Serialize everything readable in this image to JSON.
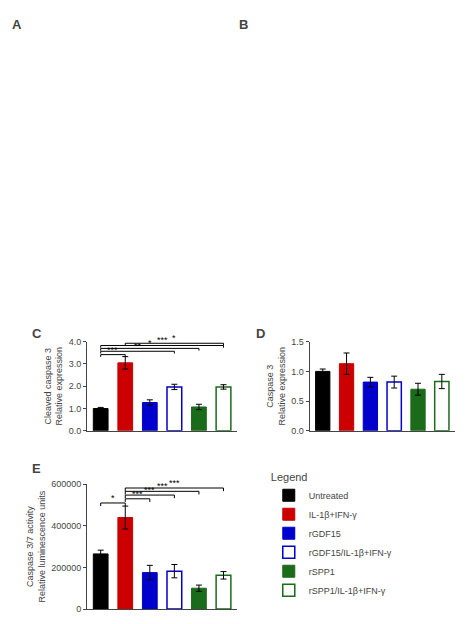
{
  "chart_data": [
    {
      "type": "blank",
      "title": "A"
    },
    {
      "type": "blank",
      "title": "B"
    },
    {
      "type": "bar",
      "title": "C",
      "ylabel": "Cleaved caspase 3\nRelative expression",
      "ylim": [
        0,
        4.0
      ],
      "yticks": [
        {
          "value": 0.0,
          "label": "0.0"
        },
        {
          "value": 1.0,
          "label": "1.0"
        },
        {
          "value": 2.0,
          "label": "2.0"
        },
        {
          "value": 3.0,
          "label": "3.0"
        },
        {
          "value": 4.0,
          "label": "4.0"
        }
      ],
      "grid": false,
      "tick_labels": "y",
      "series": [
        {
          "name": "Untreated",
          "color": "#000000",
          "marker": "filled",
          "values": [
            1.0
          ],
          "errors": [
            0.05
          ]
        },
        {
          "name": "IL-1β+IFN-γ",
          "color": "#cc0000",
          "marker": "filled",
          "values": [
            3.05
          ],
          "errors": [
            0.28
          ]
        },
        {
          "name": "rGDF15",
          "color": "#0000cc",
          "marker": "filled",
          "values": [
            1.27
          ],
          "errors": [
            0.12
          ]
        },
        {
          "name": "rGDF15/IL-1β+IFN-γ",
          "color": "#0000cc",
          "marker": "open",
          "values": [
            1.97
          ],
          "errors": [
            0.12
          ]
        },
        {
          "name": "rSPP1",
          "color": "#1a6b1a",
          "marker": "filled",
          "values": [
            1.07
          ],
          "errors": [
            0.12
          ]
        },
        {
          "name": "rSPP1/IL-1β+IFN-γ",
          "color": "#1a6b1a",
          "marker": "open",
          "values": [
            1.97
          ],
          "errors": [
            0.1
          ]
        }
      ],
      "annotations": [
        {
          "x1": 0,
          "x2": 1,
          "y": 3.42,
          "text": "***"
        },
        {
          "x1": 0,
          "x2": 3,
          "y": 3.57,
          "text": "**"
        },
        {
          "x1": 0,
          "x2": 4,
          "y": 3.7,
          "text": "*"
        },
        {
          "x1": 0,
          "x2": 5,
          "y": 3.83,
          "text": "***"
        },
        {
          "x1": 1,
          "x2": 5,
          "y": 3.93,
          "text": "*"
        }
      ]
    },
    {
      "type": "bar",
      "title": "D",
      "ylabel": "Caspase 3\nRelative expression",
      "ylim": [
        0,
        1.5
      ],
      "yticks": [
        {
          "value": 0.0,
          "label": "0.0"
        },
        {
          "value": 0.5,
          "label": "0.5"
        },
        {
          "value": 1.0,
          "label": "1.0"
        },
        {
          "value": 1.5,
          "label": "1.5"
        }
      ],
      "grid": false,
      "tick_labels": "y",
      "series": [
        {
          "name": "Untreated",
          "color": "#000000",
          "marker": "filled",
          "values": [
            1.0
          ],
          "errors": [
            0.04
          ]
        },
        {
          "name": "IL-1β+IFN-γ",
          "color": "#cc0000",
          "marker": "filled",
          "values": [
            1.13
          ],
          "errors": [
            0.18
          ]
        },
        {
          "name": "rGDF15",
          "color": "#0000cc",
          "marker": "filled",
          "values": [
            0.82
          ],
          "errors": [
            0.08
          ]
        },
        {
          "name": "rGDF15/IL-1β+IFN-γ",
          "color": "#0000cc",
          "marker": "open",
          "values": [
            0.82
          ],
          "errors": [
            0.1
          ]
        },
        {
          "name": "rSPP1",
          "color": "#1a6b1a",
          "marker": "filled",
          "values": [
            0.7
          ],
          "errors": [
            0.1
          ]
        },
        {
          "name": "rSPP1/IL-1β+IFN-γ",
          "color": "#1a6b1a",
          "marker": "open",
          "values": [
            0.83
          ],
          "errors": [
            0.12
          ]
        }
      ]
    },
    {
      "type": "bar",
      "title": "E",
      "ylabel": "Caspase 3/7 activity\nRelative luminescence units",
      "ylim": [
        0,
        600000
      ],
      "yticks": [
        0,
        200000,
        400000,
        600000
      ],
      "grid": false,
      "tick_labels": "y",
      "legend": "lower right",
      "legend_title": "Legend",
      "series": [
        {
          "name": "Untreated",
          "color": "#000000",
          "marker": "filled",
          "values": [
            265000
          ],
          "errors": [
            18000
          ]
        },
        {
          "name": "IL-1β+IFN-γ",
          "color": "#cc0000",
          "marker": "filled",
          "values": [
            440000
          ],
          "errors": [
            55000
          ]
        },
        {
          "name": "rGDF15",
          "color": "#0000cc",
          "marker": "filled",
          "values": [
            175000
          ],
          "errors": [
            35000
          ]
        },
        {
          "name": "rGDF15/IL-1β+IFN-γ",
          "color": "#0000cc",
          "marker": "open",
          "values": [
            182000
          ],
          "errors": [
            32000
          ]
        },
        {
          "name": "rSPP1",
          "color": "#1a6b1a",
          "marker": "filled",
          "values": [
            100000
          ],
          "errors": [
            15000
          ]
        },
        {
          "name": "rSPP1/IL-1β+IFN-γ",
          "color": "#1a6b1a",
          "marker": "open",
          "values": [
            162000
          ],
          "errors": [
            18000
          ]
        }
      ],
      "annotations": [
        {
          "x1": 0,
          "x2": 1,
          "y": 510000,
          "text": "*"
        },
        {
          "x1": 1,
          "x2": 2,
          "y": 530000,
          "text": "***"
        },
        {
          "x1": 1,
          "x2": 3,
          "y": 548000,
          "text": "***"
        },
        {
          "x1": 1,
          "x2": 4,
          "y": 566000,
          "text": "***"
        },
        {
          "x1": 1,
          "x2": 5,
          "y": 582000,
          "text": "***"
        }
      ]
    }
  ]
}
